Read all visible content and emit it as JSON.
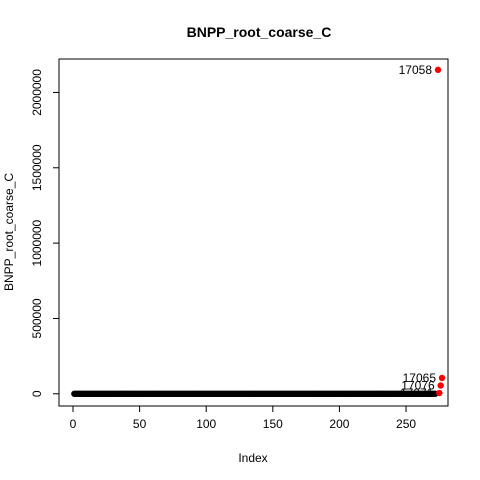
{
  "chart_data": {
    "type": "scatter",
    "title": "BNPP_root_coarse_C",
    "xlabel": "Index",
    "ylabel": "BNPP_root_coarse_C",
    "xlim": [
      0,
      280
    ],
    "ylim": [
      -10000,
      2200000
    ],
    "x_ticks": [
      0,
      50,
      100,
      150,
      200,
      250
    ],
    "y_ticks": [
      0,
      500000,
      1000000,
      1500000,
      2000000
    ],
    "base_points": {
      "x_start": 1,
      "x_end": 272,
      "y": 0,
      "color": "#000000"
    },
    "outliers": [
      {
        "label": "17058",
        "x": 274,
        "y": 2150000,
        "color": "#ff0000"
      },
      {
        "label": "17065",
        "x": 277,
        "y": 105000,
        "color": "#ff0000"
      },
      {
        "label": "17076",
        "x": 276,
        "y": 55000,
        "color": "#ff0000"
      },
      {
        "label": "17071",
        "x": 275,
        "y": 5000,
        "color": "#ff0000"
      }
    ]
  }
}
